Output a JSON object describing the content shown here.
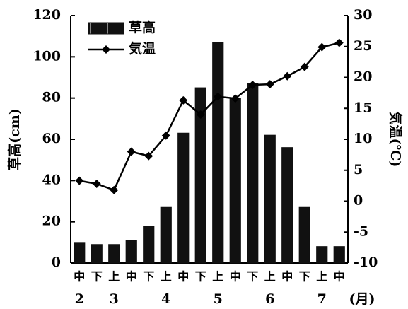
{
  "chart_data": {
    "type": "bar_line",
    "categories": [
      "中",
      "下",
      "上",
      "中",
      "下",
      "上",
      "中",
      "下",
      "上",
      "中",
      "下",
      "上",
      "中",
      "下",
      "上",
      "中"
    ],
    "months": [
      {
        "label": "2",
        "span": 2
      },
      {
        "label": "3",
        "span": 3
      },
      {
        "label": "4",
        "span": 3
      },
      {
        "label": "5",
        "span": 3
      },
      {
        "label": "6",
        "span": 3
      },
      {
        "label": "7",
        "span": 2
      }
    ],
    "month_unit": "(月)",
    "series": [
      {
        "name": "草高",
        "color": "#111111",
        "kind": "bar",
        "values": [
          10,
          9,
          9,
          11,
          18,
          27,
          63,
          85,
          107,
          80,
          87,
          62,
          56,
          27,
          8,
          8
        ]
      },
      {
        "name": "気温",
        "color": "#000000",
        "kind": "line",
        "axis": "y2",
        "values": [
          3.3,
          2.8,
          1.8,
          8.0,
          7.3,
          10.6,
          16.3,
          14.0,
          16.9,
          16.6,
          18.8,
          18.9,
          20.2,
          21.7,
          24.9,
          25.6
        ]
      }
    ],
    "ylabel": "草高(cm)",
    "y2label": "気温(℃)",
    "ylim": [
      0,
      120
    ],
    "yticks": [
      0,
      20,
      40,
      60,
      80,
      100,
      120
    ],
    "y2lim": [
      -10,
      30
    ],
    "y2ticks": [
      -10,
      -5,
      0,
      5,
      10,
      15,
      20,
      25,
      30
    ],
    "legend": "upper left"
  }
}
